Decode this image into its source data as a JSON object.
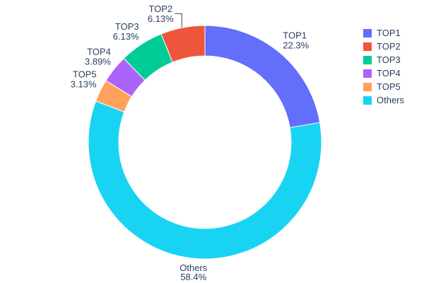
{
  "chart_data": {
    "type": "pie",
    "subtype": "donut",
    "hole_ratio": 0.74,
    "title": "",
    "legend_position": "top-right",
    "text_color": "#2a3f5f",
    "background_color": "#ffffff",
    "segments": [
      {
        "label": "TOP1",
        "value": 22.3,
        "pct_label": "22.3%",
        "color": "#636EFA",
        "leader_line": false
      },
      {
        "label": "TOP2",
        "value": 6.13,
        "pct_label": "6.13%",
        "color": "#EF553B",
        "leader_line": true
      },
      {
        "label": "TOP3",
        "value": 6.13,
        "pct_label": "6.13%",
        "color": "#00CC96",
        "leader_line": false
      },
      {
        "label": "TOP4",
        "value": 3.89,
        "pct_label": "3.89%",
        "color": "#AB63FA",
        "leader_line": false
      },
      {
        "label": "TOP5",
        "value": 3.13,
        "pct_label": "3.13%",
        "color": "#FFA15A",
        "leader_line": false
      },
      {
        "label": "Others",
        "value": 58.4,
        "pct_label": "58.4%",
        "color": "#19D3F3",
        "leader_line": false
      }
    ]
  },
  "legend": {
    "items": [
      "TOP1",
      "TOP2",
      "TOP3",
      "TOP4",
      "TOP5",
      "Others"
    ]
  }
}
